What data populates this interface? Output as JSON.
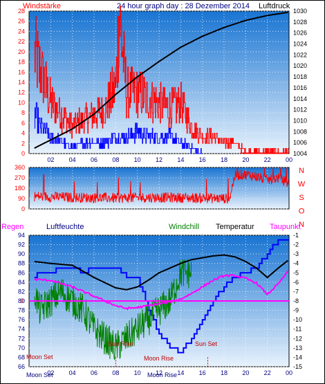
{
  "header": {
    "title": "24 hour graph day : 28 Dezember 2014",
    "left_label": "Windstärke",
    "right_label": "Luftdruck"
  },
  "colors": {
    "background": "#ffffff",
    "frame": "#000000",
    "grad_top": "#1874d2",
    "grad_bottom": "#e8f2fc",
    "red": "#ff0000",
    "blue": "#0000ff",
    "black": "#000000",
    "green": "#008000",
    "magenta": "#ff00ff",
    "darkred": "#c00000",
    "navy": "#000080"
  },
  "chart_data": [
    {
      "id": "wind-pressure",
      "type": "line",
      "x_label": "",
      "x_ticks": [
        "02",
        "04",
        "06",
        "08",
        "10",
        "12",
        "14",
        "16",
        "18",
        "20",
        "22",
        "00"
      ],
      "left_axis": {
        "label": "Windstärke",
        "min": 0,
        "max": 28,
        "ticks": [
          0,
          2,
          4,
          6,
          8,
          10,
          12,
          14,
          16,
          18,
          20,
          22,
          24,
          26,
          28
        ]
      },
      "right_axis": {
        "label": "Luftdruck",
        "min": 1004,
        "max": 1030,
        "ticks": [
          1004,
          1006,
          1008,
          1010,
          1012,
          1014,
          1016,
          1018,
          1020,
          1022,
          1024,
          1026,
          1028,
          1030
        ]
      },
      "series": [
        {
          "name": "",
          "color": "#ff0000",
          "axis": "left",
          "style": "noisy",
          "x": [
            0.5,
            1,
            2,
            3,
            4,
            5,
            6,
            7,
            8,
            8.3,
            9,
            10,
            11,
            12,
            13,
            14,
            15,
            16,
            17,
            18,
            19,
            19.5,
            20,
            22,
            24
          ],
          "y": [
            18,
            15,
            9,
            7,
            5,
            6,
            7,
            8,
            12,
            25,
            11,
            11,
            10,
            9,
            8,
            9,
            5,
            3,
            3,
            2,
            2,
            1,
            0,
            0,
            0
          ]
        },
        {
          "name": "",
          "color": "#0000ff",
          "axis": "left",
          "style": "noisy",
          "x": [
            0.5,
            1,
            2,
            3,
            4,
            5,
            6,
            7,
            8,
            9,
            10,
            11,
            12,
            13,
            14,
            15,
            15.5,
            16
          ],
          "y": [
            7,
            5,
            3,
            2,
            1,
            2,
            2,
            2,
            3,
            3,
            4,
            3,
            3,
            3,
            2,
            1,
            0,
            0
          ]
        },
        {
          "name": "",
          "color": "#000000",
          "axis": "right",
          "style": "smooth",
          "x": [
            0.5,
            2,
            4,
            6,
            8,
            10,
            12,
            14,
            16,
            18,
            20,
            22,
            24
          ],
          "y": [
            1005,
            1006.5,
            1008.5,
            1011.2,
            1014.8,
            1018,
            1020.8,
            1023.4,
            1025.4,
            1027,
            1028.3,
            1029.2,
            1029.8
          ]
        }
      ]
    },
    {
      "id": "wind-direction",
      "type": "line",
      "x_ticks": [],
      "left_axis": {
        "label": "",
        "min": 0,
        "max": 360,
        "ticks": [
          0,
          90,
          180,
          270,
          360
        ]
      },
      "right_axis": {
        "label": "",
        "labels": [
          "N",
          "W",
          "S",
          "O",
          "N"
        ]
      },
      "series": [
        {
          "name": "",
          "color": "#ff0000",
          "axis": "left",
          "style": "noisy",
          "x": [
            0.5,
            4,
            8,
            12,
            16,
            18.5,
            19,
            20,
            21,
            22,
            23,
            24
          ],
          "y": [
            110,
            100,
            95,
            100,
            95,
            90,
            290,
            300,
            280,
            250,
            270,
            220
          ]
        }
      ]
    },
    {
      "id": "humidity-temperature",
      "type": "line",
      "legend": [
        "Regen",
        "Luftfeuchte",
        "Windchill",
        "Temperatur",
        "Taupunkt"
      ],
      "x_ticks": [
        "02",
        "04",
        "06",
        "08",
        "10",
        "12",
        "14",
        "16",
        "18",
        "20",
        "22",
        "00"
      ],
      "left_axis": {
        "label": "Luftfeuchte",
        "min": 66,
        "max": 94,
        "ticks": [
          66,
          68,
          70,
          72,
          74,
          76,
          78,
          80,
          82,
          84,
          86,
          88,
          90,
          92,
          94
        ]
      },
      "right_axis": {
        "label": "Temperatur",
        "min": -15,
        "max": -1,
        "ticks": [
          -15,
          -14,
          -13,
          -12,
          -11,
          -10,
          -9,
          -8,
          -7,
          -6,
          -5,
          -4,
          -3,
          -2,
          -1
        ]
      },
      "regen_marker": "0",
      "annotations": [
        "Moon Set",
        "Sun Rise",
        "Moon Rise",
        "Sun Set",
        "Moon Set",
        "Moon Rise"
      ],
      "series": [
        {
          "name": "Luftfeuchte",
          "color": "#0000ff",
          "axis": "left",
          "style": "step",
          "x": [
            0.5,
            1,
            2,
            3,
            4,
            5,
            6,
            7,
            8,
            9,
            10,
            11,
            12,
            13,
            14,
            15,
            16,
            17,
            18,
            19,
            20,
            21,
            22,
            23,
            24
          ],
          "y": [
            85,
            86,
            86,
            87,
            87,
            86,
            87,
            87,
            87,
            85,
            85,
            78,
            73,
            70,
            69,
            72,
            76,
            80,
            83,
            85,
            86,
            87,
            90,
            93,
            93
          ]
        },
        {
          "name": "Windchill",
          "color": "#008000",
          "axis": "right",
          "style": "noisy",
          "x": [
            0.5,
            1,
            2,
            3,
            4,
            5,
            6,
            7,
            8,
            9,
            10,
            11,
            12,
            13,
            14,
            15
          ],
          "y": [
            -7,
            -9,
            -8,
            -7,
            -8,
            -9,
            -11,
            -12,
            -13,
            -12,
            -11,
            -10,
            -9,
            -8,
            -5,
            -5
          ]
        },
        {
          "name": "Temperatur",
          "color": "#000000",
          "axis": "right",
          "style": "smooth",
          "x": [
            0.5,
            2,
            4,
            6,
            8,
            9,
            10,
            11,
            12,
            13,
            14,
            15,
            16,
            17,
            18,
            19,
            20,
            21,
            22,
            23,
            24
          ],
          "y": [
            -3.8,
            -4,
            -4.2,
            -5.5,
            -6.6,
            -6.8,
            -6.5,
            -5.8,
            -5,
            -4.5,
            -4,
            -3.6,
            -3.4,
            -3.2,
            -3.1,
            -3.3,
            -3.8,
            -4.5,
            -5.5,
            -4.5,
            -3.6
          ]
        },
        {
          "name": "Taupunkt",
          "color": "#ff00ff",
          "axis": "right",
          "style": "smooth",
          "x": [
            0.5,
            2,
            4,
            6,
            8,
            9,
            10,
            11,
            12,
            13,
            14,
            15,
            16,
            17,
            18,
            19,
            20,
            21,
            22,
            23,
            24
          ],
          "y": [
            -5.7,
            -5.8,
            -6.5,
            -7.5,
            -8.5,
            -8.8,
            -8.7,
            -8.5,
            -8.3,
            -8.1,
            -7.8,
            -7.2,
            -6.5,
            -5.8,
            -5.3,
            -5.3,
            -5.6,
            -6.1,
            -7.3,
            -6.2,
            -4.7
          ]
        }
      ]
    }
  ]
}
